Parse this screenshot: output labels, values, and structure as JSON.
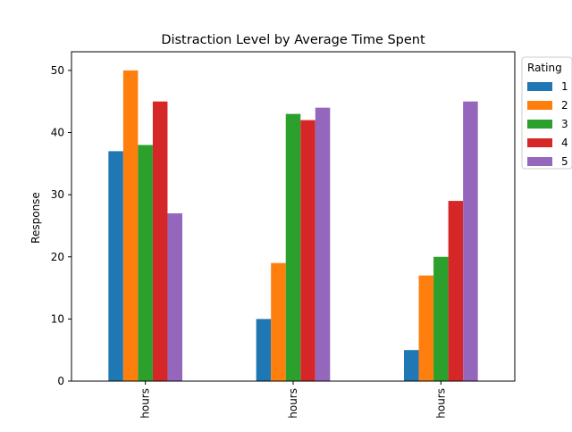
{
  "chart_data": {
    "type": "bar",
    "title": "Distraction Level by Average Time Spent",
    "xlabel": "",
    "ylabel": "Response",
    "categories": [
      "hours",
      "hours",
      "hours"
    ],
    "ylim": [
      0,
      53
    ],
    "yticks": [
      0,
      10,
      20,
      30,
      40,
      50
    ],
    "grid": false,
    "legend": {
      "title": "Rating",
      "placement": "outside-right-top"
    },
    "series": [
      {
        "name": "1",
        "color": "#1f77b4",
        "values": [
          37,
          10,
          5
        ]
      },
      {
        "name": "2",
        "color": "#ff7f0e",
        "values": [
          50,
          19,
          17
        ]
      },
      {
        "name": "3",
        "color": "#2ca02c",
        "values": [
          38,
          43,
          20
        ]
      },
      {
        "name": "4",
        "color": "#d62728",
        "values": [
          45,
          42,
          29
        ]
      },
      {
        "name": "5",
        "color": "#9467bd",
        "values": [
          27,
          44,
          45
        ]
      }
    ]
  }
}
